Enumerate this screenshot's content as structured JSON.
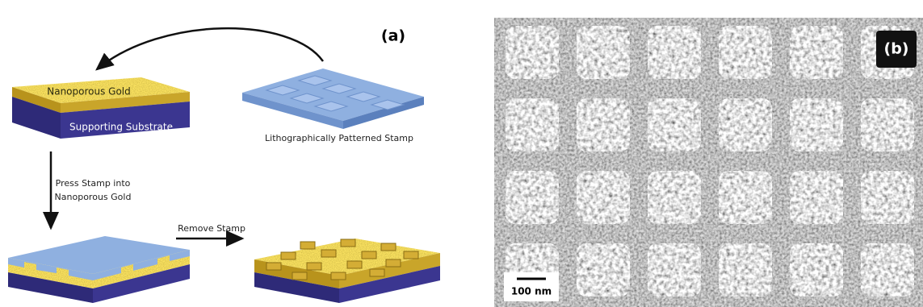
{
  "panel_a": {
    "label": "(a)",
    "film": {
      "top_label": "Nanoporous Gold",
      "substrate_label": "Supporting Substrate"
    },
    "stamp_label": "Lithographically Patterned Stamp",
    "press_step": [
      "Press Stamp into",
      "Nanoporous Gold"
    ],
    "remove_step": "Remove Stamp"
  },
  "panel_b": {
    "label": "(b)",
    "scale_bar": "100 nm"
  }
}
